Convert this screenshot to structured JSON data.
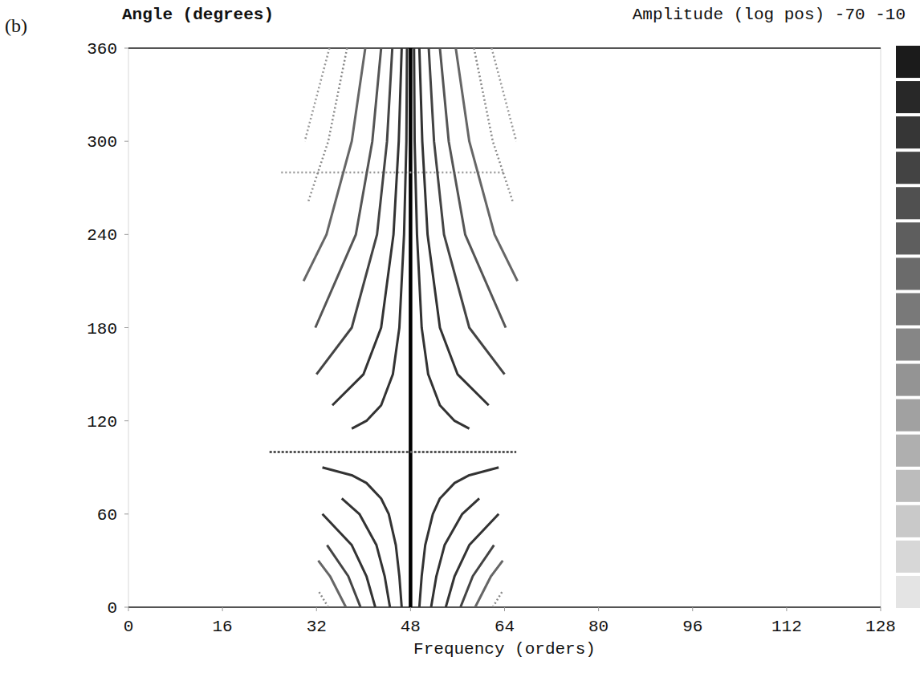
{
  "chart_data": {
    "type": "line",
    "panel_label": "(b)",
    "y_label": "Angle (degrees)",
    "x_label": "Frequency (orders)",
    "colorbar_label": "Amplitude (log pos) -70 -10",
    "color_range": [
      -70,
      -10
    ],
    "log": false,
    "grid": false,
    "xlim": [
      0,
      128
    ],
    "xticks": [
      0,
      16,
      32,
      48,
      64,
      80,
      96,
      112,
      128
    ],
    "ylim": [
      0,
      360
    ],
    "yticks": [
      0,
      60,
      120,
      180,
      240,
      300,
      360
    ],
    "series": [
      {
        "x": [
          48,
          48
        ],
        "values": [
          0,
          360
        ],
        "color": "#000000",
        "line_style": "bold"
      },
      {
        "x": [
          24,
          66
        ],
        "values": [
          100,
          100
        ],
        "color": "#555555",
        "line_style": "dashed"
      },
      {
        "x": [
          26,
          64
        ],
        "values": [
          280,
          280
        ],
        "color": "#999999",
        "line_style": "dotted"
      },
      {
        "x": [
          46.5,
          46.1,
          45.5,
          44.3,
          43,
          40.5,
          38,
          33
        ],
        "values": [
          0,
          20,
          40,
          60,
          70,
          80,
          85,
          90
        ],
        "color": "#333333",
        "line_style": "solid"
      },
      {
        "x": [
          49.5,
          49.9,
          50.5,
          51.8,
          53,
          55.5,
          58,
          63
        ],
        "values": [
          0,
          20,
          40,
          60,
          70,
          80,
          85,
          90
        ],
        "color": "#333333",
        "line_style": "solid"
      },
      {
        "x": [
          44.5,
          43.6,
          42.2,
          39.3,
          36.3
        ],
        "values": [
          0,
          20,
          40,
          60,
          70
        ],
        "color": "#333333",
        "line_style": "solid"
      },
      {
        "x": [
          51.5,
          52.4,
          53.8,
          56.8,
          59.7
        ],
        "values": [
          0,
          20,
          40,
          60,
          70
        ],
        "color": "#333333",
        "line_style": "solid"
      },
      {
        "x": [
          42,
          40.5,
          38,
          33
        ],
        "values": [
          0,
          20,
          40,
          60
        ],
        "color": "#333333",
        "line_style": "solid"
      },
      {
        "x": [
          54,
          55.5,
          58,
          63
        ],
        "values": [
          0,
          20,
          40,
          60
        ],
        "color": "#333333",
        "line_style": "solid"
      },
      {
        "x": [
          39.5,
          37.4,
          33.8
        ],
        "values": [
          0,
          20,
          40
        ],
        "color": "#444444",
        "line_style": "solid"
      },
      {
        "x": [
          56.5,
          58.6,
          62.2
        ],
        "values": [
          0,
          20,
          40
        ],
        "color": "#444444",
        "line_style": "solid"
      },
      {
        "x": [
          37,
          34.3,
          32.3
        ],
        "values": [
          0,
          20,
          30
        ],
        "color": "#666666",
        "line_style": "solid"
      },
      {
        "x": [
          59,
          61.7,
          63.7
        ],
        "values": [
          0,
          20,
          30
        ],
        "color": "#666666",
        "line_style": "solid"
      },
      {
        "x": [
          34,
          32.4
        ],
        "values": [
          0,
          10
        ],
        "color": "#888888",
        "line_style": "dotted"
      },
      {
        "x": [
          62,
          63.6
        ],
        "values": [
          0,
          10
        ],
        "color": "#888888",
        "line_style": "dotted"
      },
      {
        "x": [
          47.4,
          47.3,
          46.9,
          46.1,
          45,
          43,
          40.5,
          38
        ],
        "values": [
          360,
          300,
          240,
          180,
          150,
          130,
          120,
          115
        ],
        "color": "#333333",
        "line_style": "solid"
      },
      {
        "x": [
          48.6,
          48.7,
          49.1,
          49.9,
          51,
          53,
          55.5,
          58
        ],
        "values": [
          360,
          300,
          240,
          180,
          150,
          130,
          120,
          115
        ],
        "color": "#333333",
        "line_style": "solid"
      },
      {
        "x": [
          46.5,
          46,
          45.1,
          43,
          40,
          34.7
        ],
        "values": [
          360,
          300,
          240,
          180,
          150,
          130
        ],
        "color": "#333333",
        "line_style": "solid"
      },
      {
        "x": [
          49.5,
          50,
          50.9,
          53,
          56,
          61.3
        ],
        "values": [
          360,
          300,
          240,
          180,
          150,
          130
        ],
        "color": "#333333",
        "line_style": "solid"
      },
      {
        "x": [
          44.9,
          44,
          42.3,
          38,
          32
        ],
        "values": [
          360,
          300,
          240,
          180,
          150
        ],
        "color": "#444444",
        "line_style": "solid"
      },
      {
        "x": [
          51.1,
          52,
          53.7,
          58,
          64
        ],
        "values": [
          360,
          300,
          240,
          180,
          150
        ],
        "color": "#444444",
        "line_style": "solid"
      },
      {
        "x": [
          43,
          41.5,
          38.7,
          31.8
        ],
        "values": [
          360,
          300,
          240,
          180
        ],
        "color": "#555555",
        "line_style": "solid"
      },
      {
        "x": [
          53,
          54.5,
          57.3,
          64.2
        ],
        "values": [
          360,
          300,
          240,
          180
        ],
        "color": "#555555",
        "line_style": "solid"
      },
      {
        "x": [
          40.3,
          38,
          33.7,
          29.8
        ],
        "values": [
          360,
          300,
          240,
          210
        ],
        "color": "#666666",
        "line_style": "solid"
      },
      {
        "x": [
          55.7,
          58,
          62.3,
          66.2
        ],
        "values": [
          360,
          300,
          240,
          210
        ],
        "color": "#666666",
        "line_style": "solid"
      },
      {
        "x": [
          37.2,
          34,
          30.5
        ],
        "values": [
          360,
          300,
          260
        ],
        "color": "#888888",
        "line_style": "dotted"
      },
      {
        "x": [
          58.8,
          62,
          65.5
        ],
        "values": [
          360,
          300,
          260
        ],
        "color": "#888888",
        "line_style": "dotted"
      },
      {
        "x": [
          34.2,
          30
        ],
        "values": [
          360,
          300
        ],
        "color": "#999999",
        "line_style": "dotted"
      },
      {
        "x": [
          61.8,
          66
        ],
        "values": [
          360,
          300
        ],
        "color": "#999999",
        "line_style": "dotted"
      }
    ]
  }
}
